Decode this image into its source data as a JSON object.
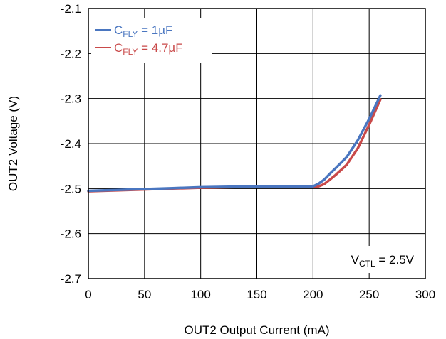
{
  "chart_data": {
    "type": "line",
    "xlabel": "OUT2 Output Current (mA)",
    "ylabel": "OUT2 Voltage (V)",
    "xlim": [
      0,
      300
    ],
    "ylim": [
      -2.7,
      -2.1
    ],
    "x_ticks": [
      0,
      50,
      100,
      150,
      200,
      250,
      300
    ],
    "y_ticks": [
      -2.1,
      -2.2,
      -2.3,
      -2.4,
      -2.5,
      -2.6,
      -2.7
    ],
    "x_tick_labels": [
      "0",
      "50",
      "100",
      "150",
      "200",
      "250",
      "300"
    ],
    "y_tick_labels": [
      "-2.1",
      "-2.2",
      "-2.3",
      "-2.4",
      "-2.5",
      "-2.6",
      "-2.7"
    ],
    "grid": true,
    "legend_position": "top-left",
    "series": [
      {
        "name_main": "C",
        "name_sub": "FLY",
        "name_suffix": " = 1µF",
        "color": "#4a76c0",
        "x": [
          0,
          25,
          50,
          75,
          100,
          125,
          150,
          175,
          200,
          205,
          210,
          215,
          220,
          230,
          240,
          250,
          260
        ],
        "y": [
          -2.505,
          -2.503,
          -2.501,
          -2.499,
          -2.497,
          -2.496,
          -2.495,
          -2.495,
          -2.495,
          -2.489,
          -2.48,
          -2.467,
          -2.455,
          -2.43,
          -2.392,
          -2.345,
          -2.293
        ]
      },
      {
        "name_main": "C",
        "name_sub": "FLY",
        "name_suffix": " = 4.7µF",
        "color": "#c94a4a",
        "x": [
          0,
          25,
          50,
          75,
          100,
          125,
          150,
          175,
          200,
          205,
          210,
          215,
          220,
          230,
          240,
          250,
          260
        ],
        "y": [
          -2.506,
          -2.504,
          -2.502,
          -2.5,
          -2.498,
          -2.497,
          -2.496,
          -2.496,
          -2.496,
          -2.495,
          -2.49,
          -2.48,
          -2.47,
          -2.447,
          -2.41,
          -2.358,
          -2.302
        ]
      }
    ],
    "annotation": {
      "main": "V",
      "sub": "CTL",
      "suffix": " = 2.5V"
    }
  }
}
